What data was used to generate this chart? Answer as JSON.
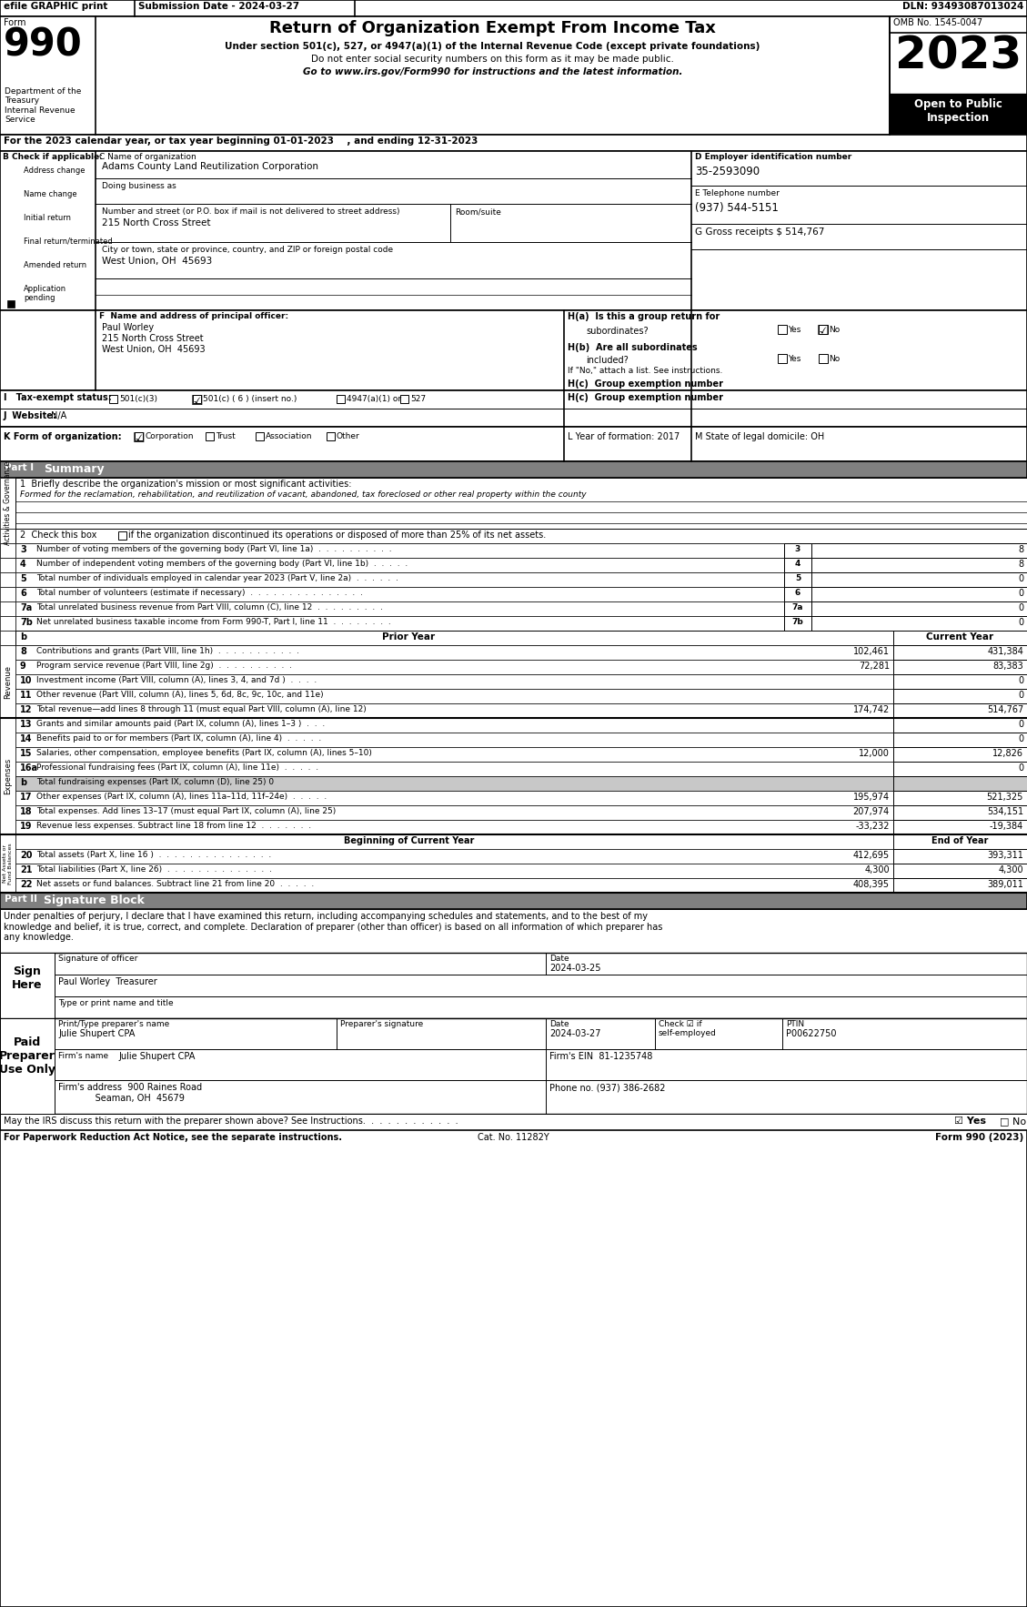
{
  "top_bar_efile": "efile GRAPHIC print",
  "top_bar_submission": "Submission Date - 2024-03-27",
  "top_bar_dln": "DLN: 93493087013024",
  "form_title": "Return of Organization Exempt From Income Tax",
  "form_subtitle1": "Under section 501(c), 527, or 4947(a)(1) of the Internal Revenue Code (except private foundations)",
  "form_subtitle2": "Do not enter social security numbers on this form as it may be made public.",
  "form_subtitle3": "Go to www.irs.gov/Form990 for instructions and the latest information.",
  "omb": "OMB No. 1545-0047",
  "year": "2023",
  "open_to_public": "Open to Public\nInspection",
  "dept": "Department of the\nTreasury\nInternal Revenue\nService",
  "tax_year_line": "For the 2023 calendar year, or tax year beginning 01-01-2023    , and ending 12-31-2023",
  "org_name_label": "C Name of organization",
  "org_name": "Adams County Land Reutilization Corporation",
  "dba_label": "Doing business as",
  "street_label": "Number and street (or P.O. box if mail is not delivered to street address)",
  "room_label": "Room/suite",
  "street": "215 North Cross Street",
  "city_label": "City or town, state or province, country, and ZIP or foreign postal code",
  "city": "West Union, OH  45693",
  "ein_label": "D Employer identification number",
  "ein": "35-2593090",
  "phone_label": "E Telephone number",
  "phone": "(937) 544-5151",
  "gross_label": "G Gross receipts $ 514,767",
  "principal_label": "F  Name and address of principal officer:",
  "principal_name": "Paul Worley",
  "principal_street": "215 North Cross Street",
  "principal_city": "West Union, OH  45693",
  "ha_label": "H(a)  Is this a group return for",
  "ha_q": "subordinates?",
  "hb_label": "H(b)  Are all subordinates",
  "hb_q": "included?",
  "hb_note": "If \"No,\" attach a list. See instructions.",
  "hc_label": "H(c)  Group exemption number",
  "tax_exempt_label": "I   Tax-exempt status:",
  "tax_501c3": "501(c)(3)",
  "tax_501c6": "501(c) ( 6 ) (insert no.)",
  "tax_4947": "4947(a)(1) or",
  "tax_527": "527",
  "website_label": "J  Website:",
  "website": "N/A",
  "form_org_label": "K Form of organization:",
  "year_formed_label": "L Year of formation: 2017",
  "state_label": "M State of legal domicile: OH",
  "part1_label": "Part I",
  "part1_title": "Summary",
  "line1_label": "1  Briefly describe the organization's mission or most significant activities:",
  "line1_text": "Formed for the reclamation, rehabilitation, and reutilization of vacant, abandoned, tax foreclosed or other real property within the county",
  "line2_label": "2  Check this box",
  "line2_rest": "if the organization discontinued its operations or disposed of more than 25% of its net assets.",
  "lines_summary": [
    {
      "num": "3",
      "desc": "Number of voting members of the governing body (Part VI, line 1a)  .  .  .  .  .  .  .  .  .  .",
      "numbox": "3",
      "current": "8"
    },
    {
      "num": "4",
      "desc": "Number of independent voting members of the governing body (Part VI, line 1b)  .  .  .  .  .",
      "numbox": "4",
      "current": "8"
    },
    {
      "num": "5",
      "desc": "Total number of individuals employed in calendar year 2023 (Part V, line 2a)  .  .  .  .  .  .",
      "numbox": "5",
      "current": "0"
    },
    {
      "num": "6",
      "desc": "Total number of volunteers (estimate if necessary)  .  .  .  .  .  .  .  .  .  .  .  .  .  .  .",
      "numbox": "6",
      "current": "0"
    },
    {
      "num": "7a",
      "desc": "Total unrelated business revenue from Part VIII, column (C), line 12  .  .  .  .  .  .  .  .  .",
      "numbox": "7a",
      "current": "0"
    },
    {
      "num": "7b",
      "desc": "Net unrelated business taxable income from Form 990-T, Part I, line 11  .  .  .  .  .  .  .  .",
      "numbox": "7b",
      "current": "0"
    }
  ],
  "prior_year_header": "Prior Year",
  "current_year_header": "Current Year",
  "revenue_lines": [
    {
      "num": "8",
      "desc": "Contributions and grants (Part VIII, line 1h)  .  .  .  .  .  .  .  .  .  .  .",
      "prior": "102,461",
      "current": "431,384"
    },
    {
      "num": "9",
      "desc": "Program service revenue (Part VIII, line 2g)  .  .  .  .  .  .  .  .  .  .",
      "prior": "72,281",
      "current": "83,383"
    },
    {
      "num": "10",
      "desc": "Investment income (Part VIII, column (A), lines 3, 4, and 7d )  .  .  .  .",
      "prior": "",
      "current": "0"
    },
    {
      "num": "11",
      "desc": "Other revenue (Part VIII, column (A), lines 5, 6d, 8c, 9c, 10c, and 11e)",
      "prior": "",
      "current": "0"
    },
    {
      "num": "12",
      "desc": "Total revenue—add lines 8 through 11 (must equal Part VIII, column (A), line 12)",
      "prior": "174,742",
      "current": "514,767"
    }
  ],
  "expense_lines": [
    {
      "num": "13",
      "desc": "Grants and similar amounts paid (Part IX, column (A), lines 1–3 )  .  .  .",
      "prior": "",
      "current": "0",
      "gray": false
    },
    {
      "num": "14",
      "desc": "Benefits paid to or for members (Part IX, column (A), line 4)  .  .  .  .  .",
      "prior": "",
      "current": "0",
      "gray": false
    },
    {
      "num": "15",
      "desc": "Salaries, other compensation, employee benefits (Part IX, column (A), lines 5–10)",
      "prior": "12,000",
      "current": "12,826",
      "gray": false
    },
    {
      "num": "16a",
      "desc": "Professional fundraising fees (Part IX, column (A), line 11e)  .  .  .  .  .",
      "prior": "",
      "current": "0",
      "gray": false
    },
    {
      "num": "b",
      "desc": "Total fundraising expenses (Part IX, column (D), line 25) 0",
      "prior": "",
      "current": "",
      "gray": true
    },
    {
      "num": "17",
      "desc": "Other expenses (Part IX, column (A), lines 11a–11d, 11f–24e)  .  .  .  .  .",
      "prior": "195,974",
      "current": "521,325",
      "gray": false
    },
    {
      "num": "18",
      "desc": "Total expenses. Add lines 13–17 (must equal Part IX, column (A), line 25)",
      "prior": "207,974",
      "current": "534,151",
      "gray": false
    },
    {
      "num": "19",
      "desc": "Revenue less expenses. Subtract line 18 from line 12  .  .  .  .  .  .  .",
      "prior": "-33,232",
      "current": "-19,384",
      "gray": false
    }
  ],
  "begin_current_header": "Beginning of Current Year",
  "end_year_header": "End of Year",
  "netasset_lines": [
    {
      "num": "20",
      "desc": "Total assets (Part X, line 16 )  .  .  .  .  .  .  .  .  .  .  .  .  .  .  .",
      "prior": "412,695",
      "current": "393,311"
    },
    {
      "num": "21",
      "desc": "Total liabilities (Part X, line 26)  .  .  .  .  .  .  .  .  .  .  .  .  .  .",
      "prior": "4,300",
      "current": "4,300"
    },
    {
      "num": "22",
      "desc": "Net assets or fund balances. Subtract line 21 from line 20  .  .  .  .  .",
      "prior": "408,395",
      "current": "389,011"
    }
  ],
  "part2_label": "Part II",
  "part2_title": "Signature Block",
  "sig_text": "Under penalties of perjury, I declare that I have examined this return, including accompanying schedules and statements, and to the best of my\nknowledge and belief, it is true, correct, and complete. Declaration of preparer (other than officer) is based on all information of which preparer has\nany knowledge.",
  "date_signed": "2024-03-25",
  "sig_officer_name": "Paul Worley  Treasurer",
  "preparer_name": "Julie Shupert CPA",
  "preparer_date": "2024-03-27",
  "ptin": "P00622750",
  "firm_name": "Julie Shupert CPA",
  "firm_ein": "81-1235748",
  "firm_address": "900 Raines Road",
  "firm_city": "Seaman, OH  45679",
  "phone_no": "(937) 386-2682",
  "discuss_label": "May the IRS discuss this return with the preparer shown above? See Instructions.  .  .  .  .  .  .  .  .  .  .  .",
  "footer_left": "For Paperwork Reduction Act Notice, see the separate instructions.",
  "cat_no": "Cat. No. 11282Y",
  "form_footer": "Form 990 (2023)"
}
